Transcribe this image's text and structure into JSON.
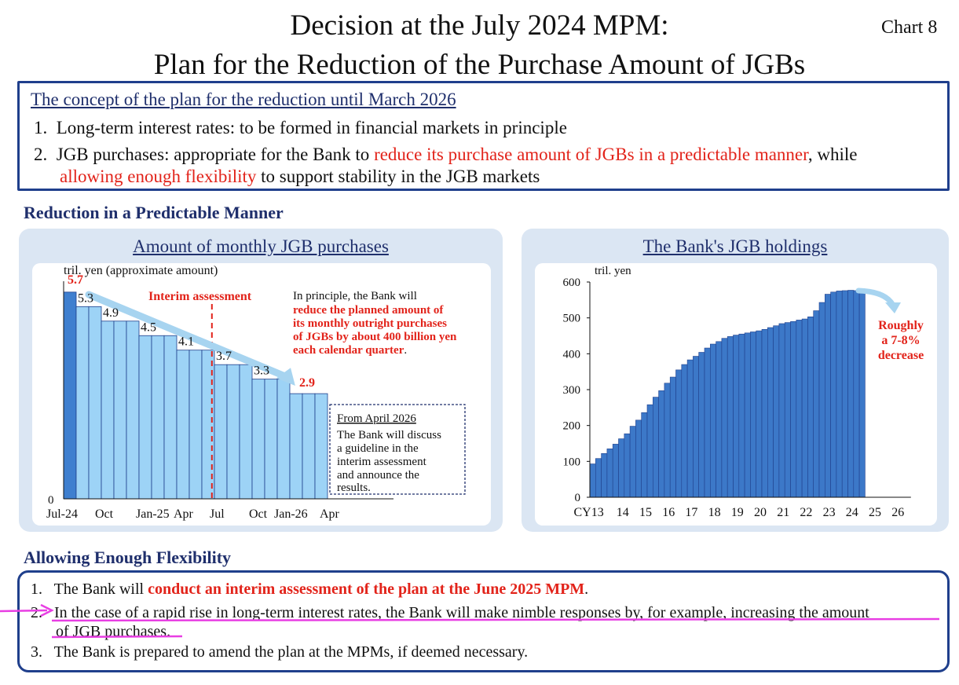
{
  "header": {
    "title_line1": "Decision at the July 2024 MPM:",
    "title_line2": "Plan for the Reduction of the Purchase Amount of JGBs",
    "chart_label": "Chart 8"
  },
  "concept": {
    "heading": "The concept of the plan for the reduction until March 2026",
    "item1_num": "1.",
    "item1_text": "Long-term interest rates: to be formed in financial markets in principle",
    "item2_num": "2.",
    "item2_text_a": "JGB purchases: appropriate for the Bank to ",
    "item2_text_b": "reduce its purchase amount of JGBs in a predictable manner",
    "item2_text_c": ", while",
    "item2_text_d": "allowing enough flexibility",
    "item2_text_e": " to support stability in the JGB markets"
  },
  "predictable": {
    "section_title": "Reduction in a Predictable Manner"
  },
  "flexibility": {
    "section_title": "Allowing Enough Flexibility",
    "item1_num": "1.",
    "item1_text_a": "The Bank will ",
    "item1_text_b": "conduct an interim assessment of the plan at the June 2025 MPM",
    "item1_text_c": ".",
    "item2_num": "2.",
    "item2_text_line1": "In the case of a rapid rise in long-term interest rates, the Bank will make nimble responses by, for example, increasing the amount",
    "item2_text_line2": "of JGB purchases.",
    "item3_num": "3.",
    "item3_text": "The Bank is prepared to amend the plan at the MPMs, if deemed necessary."
  },
  "colors": {
    "navy": "#1f3f8c",
    "panel_bg": "#dbe6f3",
    "bar_light": "#9dd3f6",
    "bar_dark": "#3f7fcf",
    "bar_blue": "#3c78c8",
    "accent_red": "#e2231a",
    "arrow_light": "#a7d4f0",
    "highlight_magenta": "#e83ee3"
  },
  "chart_data": [
    {
      "type": "bar",
      "title": "Amount of monthly JGB purchases",
      "ylabel": "tril. yen (approximate amount)",
      "ylim": [
        0,
        6.0
      ],
      "y_ticks": [
        "0"
      ],
      "x_tick_labels": [
        "Jul-24",
        "Oct",
        "Jan-25",
        "Apr",
        "Jul",
        "Oct",
        "Jan-26",
        "Apr"
      ],
      "categories": [
        "Jul-24",
        "Aug-24",
        "Sep-24",
        "Oct-24",
        "Nov-24",
        "Dec-24",
        "Jan-25",
        "Feb-25",
        "Mar-25",
        "Apr-25",
        "May-25",
        "Jun-25",
        "Jul-25",
        "Aug-25",
        "Sep-25",
        "Oct-25",
        "Nov-25",
        "Dec-25",
        "Jan-26",
        "Feb-26",
        "Mar-26"
      ],
      "values": [
        5.7,
        5.3,
        5.3,
        4.9,
        4.9,
        4.9,
        4.5,
        4.5,
        4.5,
        4.1,
        4.1,
        4.1,
        3.7,
        3.7,
        3.7,
        3.3,
        3.3,
        3.3,
        2.9,
        2.9,
        2.9
      ],
      "labels": [
        {
          "text": "5.7",
          "value": 5.7,
          "bar": 0,
          "highlight": true
        },
        {
          "text": "5.3",
          "value": 5.3,
          "bar": 1,
          "highlight": false
        },
        {
          "text": "4.9",
          "value": 4.9,
          "bar": 3,
          "highlight": false
        },
        {
          "text": "4.5",
          "value": 4.5,
          "bar": 6,
          "highlight": false
        },
        {
          "text": "4.1",
          "value": 4.1,
          "bar": 9,
          "highlight": false
        },
        {
          "text": "3.7",
          "value": 3.7,
          "bar": 12,
          "highlight": false
        },
        {
          "text": "3.3",
          "value": 3.3,
          "bar": 15,
          "highlight": false
        },
        {
          "text": "2.9",
          "value": 2.9,
          "bar": 18,
          "highlight": true
        }
      ],
      "interim_label": "Interim assessment",
      "note_line1": "In principle, the Bank will",
      "note_line2": "reduce the planned amount of",
      "note_line3": "its monthly outright purchases",
      "note_line4": "of JGBs by about 400 billion yen",
      "note_line5a": "each calendar quarter",
      "note_line5b": ".",
      "box_line1": "From April 2026",
      "box_line2": "The Bank will discuss",
      "box_line3": "a guideline in the",
      "box_line4": "interim assessment",
      "box_line5": "and announce the",
      "box_line6": "results."
    },
    {
      "type": "bar",
      "title": "The Bank's JGB holdings",
      "ylabel": "tril. yen",
      "ylim": [
        0,
        600
      ],
      "y_ticks": [
        "0",
        "100",
        "200",
        "300",
        "400",
        "500",
        "600"
      ],
      "x_tick_labels": [
        "CY13",
        "14",
        "15",
        "16",
        "17",
        "18",
        "19",
        "20",
        "21",
        "22",
        "23",
        "24",
        "25",
        "26"
      ],
      "x_start_year": 2013,
      "quarters_per_year": 4,
      "values": [
        93,
        108,
        122,
        135,
        148,
        163,
        177,
        198,
        215,
        236,
        258,
        279,
        297,
        318,
        335,
        355,
        370,
        383,
        393,
        404,
        416,
        427,
        434,
        443,
        448,
        452,
        455,
        458,
        461,
        464,
        468,
        473,
        478,
        484,
        487,
        490,
        494,
        497,
        503,
        520,
        543,
        566,
        572,
        575,
        576,
        577,
        576,
        576
      ],
      "annotation_line1": "Roughly",
      "annotation_line2": "a 7-8%",
      "annotation_line3": "decrease"
    }
  ]
}
